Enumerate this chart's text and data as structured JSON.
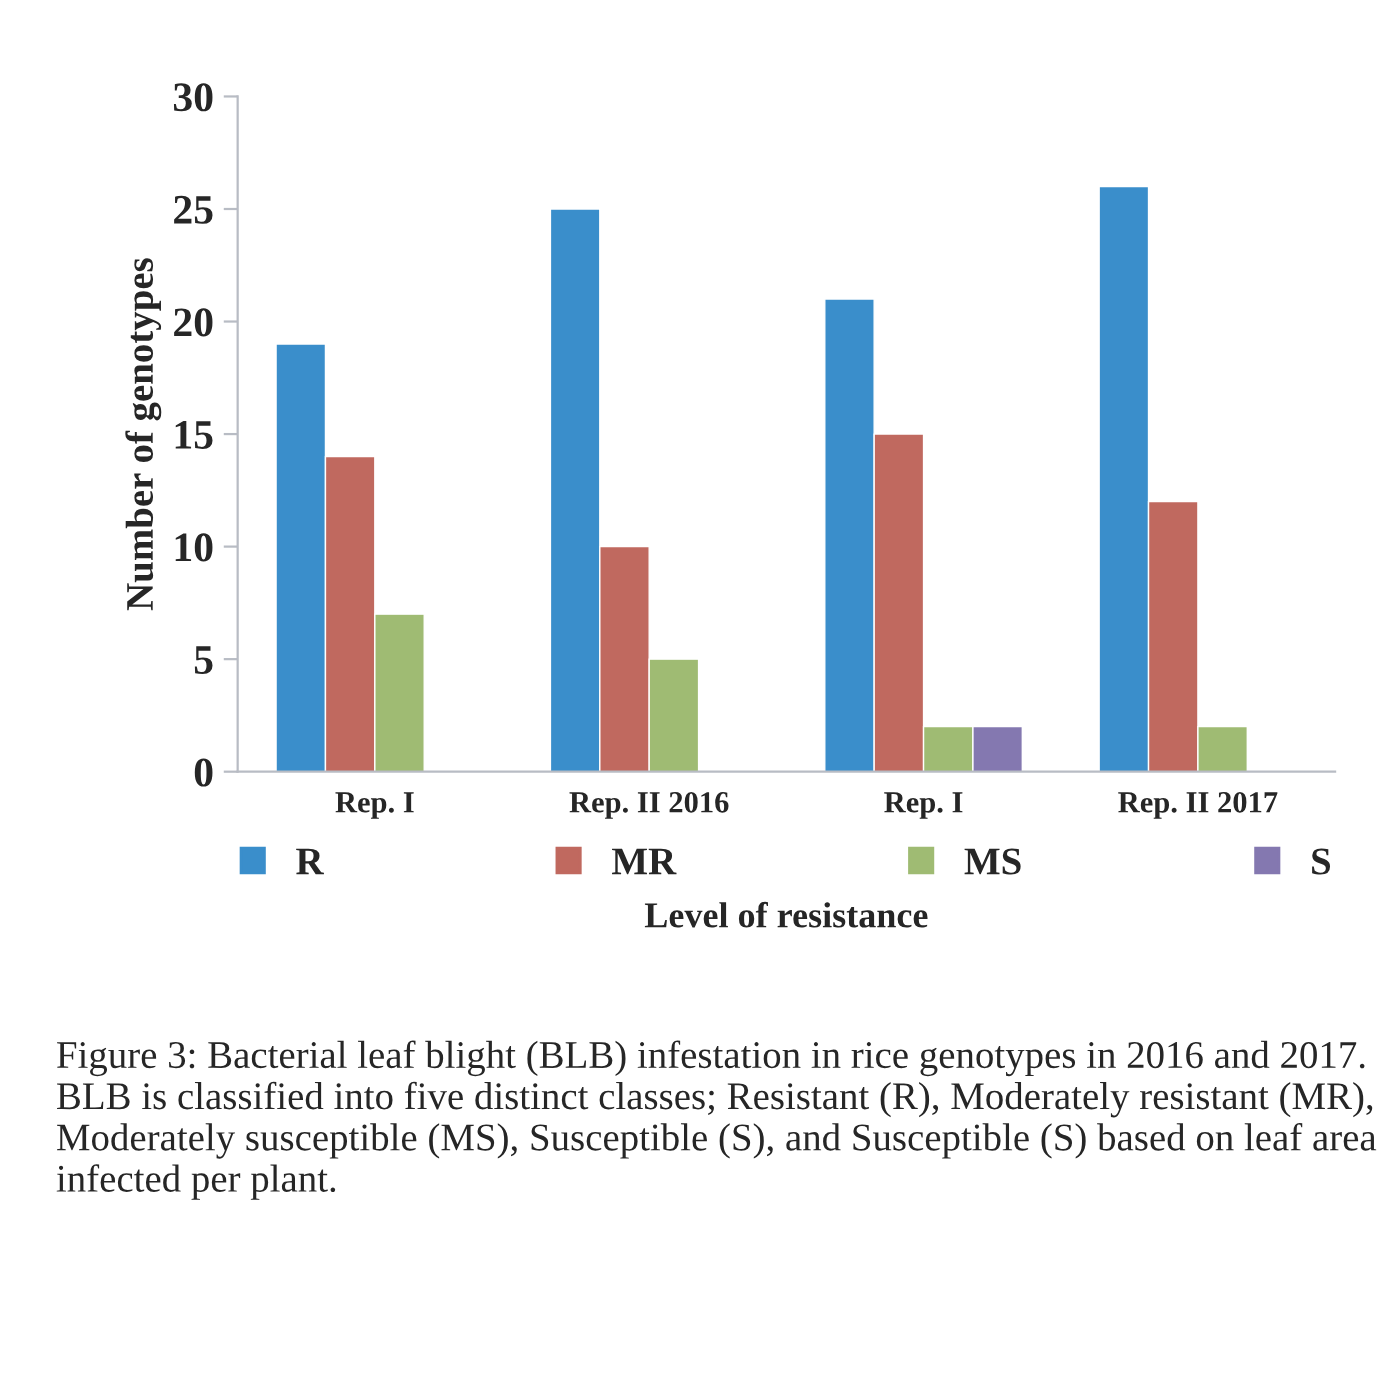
{
  "chart_data": {
    "type": "bar",
    "xlabel": "Level of resistance",
    "ylabel": "Number of genotypes",
    "categories": [
      "Rep. I",
      "Rep. II 2016",
      "Rep. I",
      "Rep. II 2017"
    ],
    "series": [
      {
        "name": "R",
        "color": "#3a8ecb",
        "values": [
          19,
          25,
          21,
          26
        ]
      },
      {
        "name": "MR",
        "color": "#c0695f",
        "values": [
          14,
          10,
          15,
          12
        ]
      },
      {
        "name": "MS",
        "color": "#9fbb73",
        "values": [
          7,
          5,
          2,
          2
        ]
      },
      {
        "name": "S",
        "color": "#8478b0",
        "values": [
          null,
          null,
          2,
          null
        ]
      }
    ],
    "ylim": [
      0,
      30
    ],
    "yticks": [
      0,
      5,
      10,
      15,
      20,
      25,
      30
    ],
    "grid": false,
    "legend": "bottom",
    "annotations": [
      "Figure 3: Bacterial leaf blight (BLB) infestation in rice genotypes in 2016 and 2017. BLB is classified into five distinct classes; Resistant (R), Moderately resistant (MR), Moderately susceptible (MS), Susceptible (S), and Susceptible (S) based on leaf area infected per plant."
    ]
  }
}
